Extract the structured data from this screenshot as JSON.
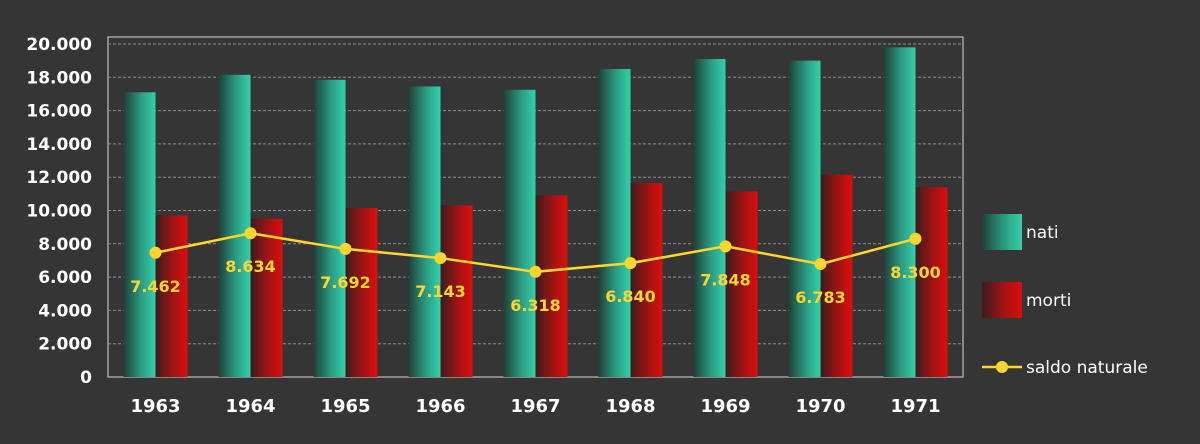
{
  "chart_data": {
    "type": "bar",
    "categories": [
      "1963",
      "1964",
      "1965",
      "1966",
      "1967",
      "1968",
      "1969",
      "1970",
      "1971"
    ],
    "series": [
      {
        "name": "nati",
        "type": "bar",
        "color": "#2fc1a0",
        "values": [
          17100,
          18150,
          17850,
          17450,
          17250,
          18500,
          19100,
          19000,
          19800
        ]
      },
      {
        "name": "morti",
        "type": "bar",
        "color": "#d10f0f",
        "values": [
          9700,
          9500,
          10150,
          10300,
          10900,
          11650,
          11150,
          12150,
          11400
        ]
      },
      {
        "name": "saldo naturale",
        "type": "line",
        "color": "#ffd52e",
        "values": [
          7462,
          8634,
          7692,
          7143,
          6318,
          6840,
          7848,
          6783,
          8300
        ],
        "labels": [
          "7.462",
          "8.634",
          "7.692",
          "7.143",
          "6.318",
          "6.840",
          "7.848",
          "6.783",
          "8.300"
        ]
      }
    ],
    "ylim": [
      0,
      20000
    ],
    "yticks": [
      0,
      2000,
      4000,
      6000,
      8000,
      10000,
      12000,
      14000,
      16000,
      18000,
      20000
    ],
    "ytick_labels": [
      "0",
      "2.000",
      "4.000",
      "6.000",
      "8.000",
      "10.000",
      "12.000",
      "14.000",
      "16.000",
      "18.000",
      "20.000"
    ],
    "grid": true,
    "legend_position": "right",
    "title": "",
    "xlabel": "",
    "ylabel": ""
  }
}
